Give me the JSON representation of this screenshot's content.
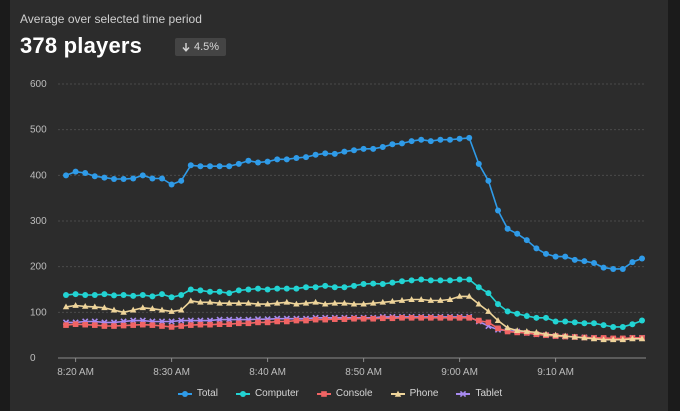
{
  "header": {
    "subtitle": "Average over selected time period",
    "headline": "378 players",
    "delta": "4.5%",
    "delta_icon": "arrow-down-icon"
  },
  "chart_data": {
    "type": "line",
    "title": "",
    "xlabel": "",
    "ylabel": "",
    "ylim": [
      0,
      600
    ],
    "yticks": [
      "0",
      "100",
      "200",
      "300",
      "400",
      "500",
      "600"
    ],
    "xticks": [
      "8:20 AM",
      "8:30 AM",
      "8:40 AM",
      "8:50 AM",
      "9:00 AM",
      "9:10 AM"
    ],
    "x_start": "8:19 AM",
    "x_step_minutes": 1,
    "grid": true,
    "legend_position": "bottom",
    "series": [
      {
        "name": "Total",
        "color": "#2f9be8",
        "marker": "circle",
        "values": [
          400,
          408,
          405,
          398,
          395,
          392,
          392,
          393,
          400,
          393,
          393,
          380,
          388,
          422,
          420,
          420,
          420,
          420,
          425,
          432,
          428,
          430,
          435,
          435,
          438,
          440,
          445,
          448,
          447,
          452,
          455,
          458,
          458,
          462,
          468,
          470,
          475,
          478,
          475,
          478,
          478,
          480,
          482,
          425,
          388,
          323,
          283,
          272,
          258,
          240,
          228,
          222,
          222,
          215,
          212,
          208,
          198,
          195,
          195,
          210,
          218
        ]
      },
      {
        "name": "Computer",
        "color": "#22d3d3",
        "marker": "circle",
        "values": [
          138,
          140,
          138,
          138,
          140,
          137,
          138,
          136,
          138,
          135,
          140,
          133,
          138,
          150,
          148,
          145,
          145,
          142,
          148,
          150,
          152,
          150,
          152,
          152,
          152,
          155,
          155,
          158,
          155,
          155,
          158,
          162,
          163,
          162,
          165,
          168,
          170,
          172,
          170,
          170,
          170,
          172,
          172,
          155,
          142,
          118,
          102,
          97,
          92,
          88,
          88,
          80,
          80,
          78,
          76,
          76,
          72,
          68,
          68,
          74,
          82
        ]
      },
      {
        "name": "Console",
        "color": "#f06464",
        "marker": "square",
        "values": [
          72,
          74,
          73,
          72,
          70,
          70,
          71,
          72,
          73,
          72,
          70,
          68,
          70,
          72,
          73,
          73,
          74,
          74,
          76,
          76,
          78,
          78,
          80,
          80,
          82,
          82,
          84,
          84,
          85,
          85,
          86,
          86,
          86,
          87,
          87,
          88,
          88,
          88,
          88,
          88,
          88,
          88,
          88,
          82,
          78,
          65,
          58,
          56,
          55,
          52,
          50,
          48,
          47,
          46,
          45,
          44,
          44,
          43,
          43,
          44,
          44
        ]
      },
      {
        "name": "Phone",
        "color": "#eed49a",
        "marker": "triangle",
        "values": [
          112,
          115,
          113,
          112,
          110,
          105,
          100,
          105,
          110,
          108,
          105,
          102,
          105,
          125,
          122,
          122,
          120,
          120,
          120,
          120,
          118,
          118,
          120,
          122,
          118,
          120,
          122,
          118,
          120,
          120,
          118,
          118,
          120,
          122,
          124,
          126,
          128,
          128,
          126,
          126,
          128,
          135,
          135,
          118,
          102,
          82,
          66,
          60,
          58,
          56,
          52,
          50,
          48,
          46,
          44,
          42,
          40,
          40,
          40,
          42,
          42
        ]
      },
      {
        "name": "Tablet",
        "color": "#a78af0",
        "marker": "x",
        "values": [
          78,
          78,
          80,
          80,
          78,
          78,
          80,
          82,
          82,
          80,
          80,
          80,
          82,
          82,
          82,
          82,
          84,
          84,
          84,
          84,
          85,
          85,
          86,
          86,
          86,
          86,
          88,
          88,
          88,
          88,
          88,
          88,
          88,
          90,
          90,
          90,
          90,
          90,
          90,
          90,
          90,
          90,
          90,
          80,
          70,
          62,
          60,
          58,
          55,
          52,
          50,
          48,
          47,
          46,
          45,
          44,
          43,
          42,
          42,
          44,
          44
        ]
      }
    ]
  }
}
